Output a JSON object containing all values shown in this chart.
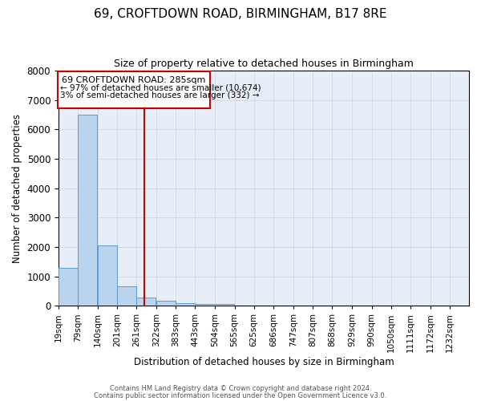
{
  "title": "69, CROFTDOWN ROAD, BIRMINGHAM, B17 8RE",
  "subtitle": "Size of property relative to detached houses in Birmingham",
  "xlabel": "Distribution of detached houses by size in Birmingham",
  "ylabel": "Number of detached properties",
  "bins": [
    19,
    79,
    140,
    201,
    261,
    322,
    383,
    443,
    504,
    565,
    625,
    686,
    747,
    807,
    868,
    929,
    990,
    1050,
    1111,
    1172,
    1232
  ],
  "counts": [
    1300,
    6500,
    2060,
    670,
    285,
    155,
    95,
    50,
    50,
    0,
    0,
    0,
    0,
    0,
    0,
    0,
    0,
    0,
    0,
    0
  ],
  "bar_color": "#bad4ed",
  "bar_edge_color": "#5b9bd5",
  "red_line_x": 285,
  "annotation_title": "69 CROFTDOWN ROAD: 285sqm",
  "annotation_line1": "← 97% of detached houses are smaller (10,674)",
  "annotation_line2": "3% of semi-detached houses are larger (332) →",
  "annotation_box_color": "#ffffff",
  "annotation_box_edge": "#cc0000",
  "red_line_color": "#cc0000",
  "footer_line1": "Contains HM Land Registry data © Crown copyright and database right 2024.",
  "footer_line2": "Contains public sector information licensed under the Open Government Licence v3.0.",
  "ylim": [
    0,
    8000
  ],
  "title_fontsize": 11,
  "subtitle_fontsize": 9,
  "tick_fontsize": 7.5,
  "ylabel_fontsize": 8.5,
  "xlabel_fontsize": 8.5,
  "bg_color": "#e8eef8"
}
